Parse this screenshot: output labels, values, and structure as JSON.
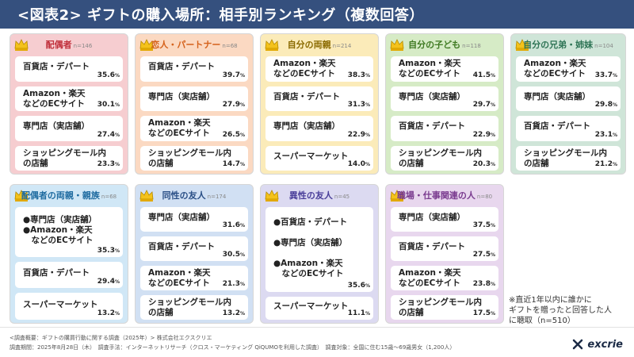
{
  "header": {
    "title": "<図表2> ギフトの購入場所：相手別ランキング（複数回答）"
  },
  "chart_data": {
    "type": "table",
    "unit": "%",
    "title": "<図表2> ギフトの購入場所：相手別ランキング（複数回答）",
    "panels": [
      {
        "name": "配偶者",
        "n": "n=146",
        "color": "#f6cdd0",
        "text": "#c0303b",
        "items": [
          {
            "label": [
              "百貨店・デパート"
            ],
            "value": 35.6
          },
          {
            "label": [
              "Amazon・楽天",
              "などのECサイト"
            ],
            "value": 30.1
          },
          {
            "label": [
              "専門店（実店舗）"
            ],
            "value": 27.4
          },
          {
            "label": [
              "ショッピングモール内",
              "の店舗"
            ],
            "value": 23.3
          }
        ]
      },
      {
        "name": "恋人・パートナー",
        "n": "n=68",
        "color": "#fbd9c2",
        "text": "#d5621c",
        "items": [
          {
            "label": [
              "百貨店・デパート"
            ],
            "value": 39.7
          },
          {
            "label": [
              "専門店（実店舗）"
            ],
            "value": 27.9
          },
          {
            "label": [
              "Amazon・楽天",
              "などのECサイト"
            ],
            "value": 26.5
          },
          {
            "label": [
              "ショッピングモール内",
              "の店舗"
            ],
            "value": 14.7
          }
        ]
      },
      {
        "name": "自分の両親",
        "n": "n=214",
        "color": "#fbebb9",
        "text": "#8a6a00",
        "items": [
          {
            "label": [
              "Amazon・楽天",
              "などのECサイト"
            ],
            "value": 38.3
          },
          {
            "label": [
              "百貨店・デパート"
            ],
            "value": 31.3
          },
          {
            "label": [
              "専門店（実店舗）"
            ],
            "value": 22.9
          },
          {
            "label": [
              "スーパーマーケット"
            ],
            "value": 14.0
          }
        ]
      },
      {
        "name": "自分の子ども",
        "n": "n=118",
        "color": "#d6ebc6",
        "text": "#3f7a22",
        "items": [
          {
            "label": [
              "Amazon・楽天",
              "などのECサイト"
            ],
            "value": 41.5
          },
          {
            "label": [
              "専門店（実店舗）"
            ],
            "value": 29.7
          },
          {
            "label": [
              "百貨店・デパート"
            ],
            "value": 22.9
          },
          {
            "label": [
              "ショッピングモール内",
              "の店舗"
            ],
            "value": 20.3
          }
        ]
      },
      {
        "name": "自分の兄弟・姉妹",
        "n": "n=104",
        "color": "#cfe5d8",
        "text": "#2e7455",
        "items": [
          {
            "label": [
              "Amazon・楽天",
              "などのECサイト"
            ],
            "value": 33.7
          },
          {
            "label": [
              "専門店（実店舗）"
            ],
            "value": 29.8
          },
          {
            "label": [
              "百貨店・デパート"
            ],
            "value": 23.1
          },
          {
            "label": [
              "ショッピングモール内",
              "の店舗"
            ],
            "value": 21.2
          }
        ]
      },
      {
        "name": "配偶者の両親・親族",
        "n": "n=68",
        "color": "#d0e7f6",
        "text": "#1e6ba0",
        "items": [
          {
            "label": [
              "●専門店（実店舗）",
              "●Amazon・楽天",
              "　などのECサイト"
            ],
            "value": 35.3
          },
          {
            "label": [
              "百貨店・デパート"
            ],
            "value": 29.4
          },
          {
            "label": [
              "スーパーマーケット"
            ],
            "value": 13.2
          }
        ]
      },
      {
        "name": "同性の友人",
        "n": "n=174",
        "color": "#d1e0f3",
        "text": "#2a4f86",
        "items": [
          {
            "label": [
              "専門店（実店舗）"
            ],
            "value": 31.6
          },
          {
            "label": [
              "百貨店・デパート"
            ],
            "value": 30.5
          },
          {
            "label": [
              "Amazon・楽天",
              "などのECサイト"
            ],
            "value": 21.3
          },
          {
            "label": [
              "ショッピングモール内",
              "の店舗"
            ],
            "value": 13.2
          }
        ]
      },
      {
        "name": "異性の友人",
        "n": "n=45",
        "color": "#dcdaf1",
        "text": "#4a3f9a",
        "items": [
          {
            "label": [
              "●百貨店・デパート",
              "",
              "●専門店（実店舗）",
              "",
              "●Amazon・楽天",
              "　などのECサイト"
            ],
            "value": 35.6
          },
          {
            "label": [
              "スーパーマーケット"
            ],
            "value": 11.1
          }
        ]
      },
      {
        "name": "職場・仕事関連の人",
        "n": "n=80",
        "color": "#e8d7ee",
        "text": "#7a3b8f",
        "items": [
          {
            "label": [
              "専門店（実店舗）"
            ],
            "value": 37.5
          },
          {
            "label": [
              "百貨店・デパート"
            ],
            "value": 27.5
          },
          {
            "label": [
              "Amazon・楽天",
              "などのECサイト"
            ],
            "value": 23.8
          },
          {
            "label": [
              "ショッピングモール内",
              "の店舗"
            ],
            "value": 17.5
          }
        ]
      }
    ]
  },
  "note": [
    "※直近1年以内に誰かに",
    "ギフトを贈ったと回答した人",
    "に聴取（n=510）"
  ],
  "footer": {
    "line1": "<調査概要：ギフトの購買行動に関する調査（2025年）> 株式会社エクスクリエ",
    "line2": "調査期間：2025年8月28日（木）　調査手法：インターネットリサーチ（クロス・マーケティング QiQUMOを利用した調査）　調査対象：全国に住む15歳～69歳男女（1,200人）",
    "logo": "excrie"
  }
}
